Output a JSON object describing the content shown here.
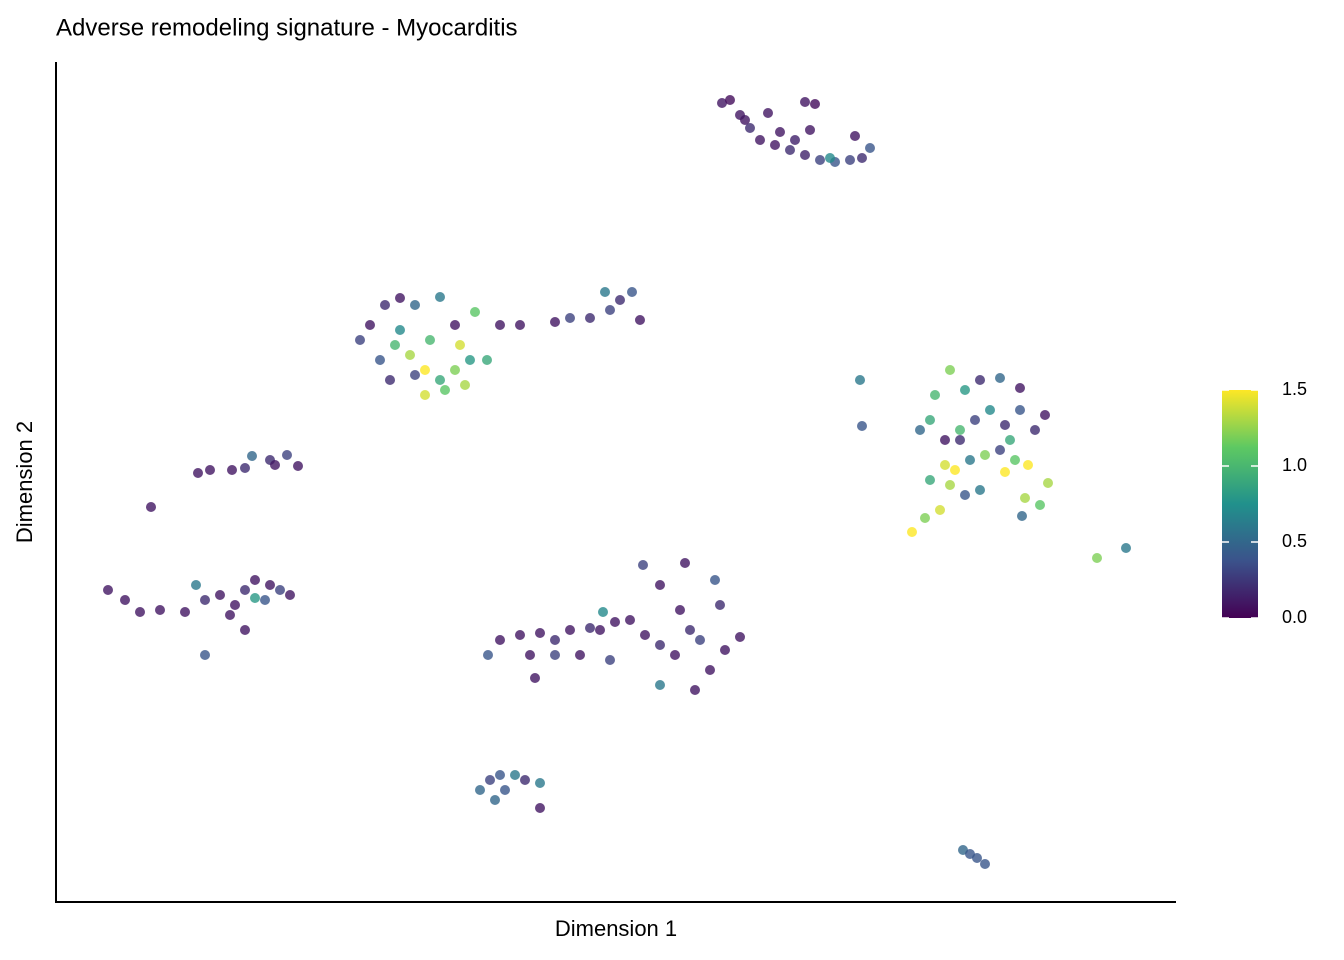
{
  "chart_data": {
    "type": "scatter",
    "title": "Adverse remodeling signature - Myocarditis",
    "x_label": "Dimension 1",
    "y_label": "Dimension 2",
    "xlim": [
      0,
      1120
    ],
    "ylim": [
      0,
      840
    ],
    "x": [
      666,
      674,
      684,
      712,
      749,
      759,
      694,
      704,
      719,
      734,
      749,
      764,
      779,
      794,
      799,
      814,
      806,
      724,
      739,
      774,
      754,
      689,
      304,
      314,
      329,
      344,
      359,
      384,
      399,
      419,
      324,
      339,
      354,
      369,
      384,
      399,
      409,
      369,
      389,
      414,
      431,
      344,
      374,
      359,
      334,
      404,
      444,
      464,
      499,
      514,
      534,
      549,
      564,
      576,
      584,
      554,
      804,
      806,
      864,
      879,
      894,
      909,
      924,
      944,
      964,
      989,
      874,
      889,
      904,
      919,
      934,
      949,
      964,
      979,
      889,
      899,
      914,
      929,
      944,
      959,
      972,
      874,
      894,
      909,
      924,
      949,
      969,
      984,
      992,
      856,
      869,
      884,
      966,
      1041,
      1070,
      904,
      954,
      95,
      142,
      154,
      176,
      189,
      196,
      214,
      231,
      242,
      219,
      52,
      69,
      84,
      104,
      129,
      140,
      149,
      164,
      179,
      189,
      199,
      209,
      224,
      234,
      199,
      189,
      149,
      174,
      214,
      432,
      444,
      464,
      484,
      499,
      514,
      534,
      547,
      544,
      524,
      554,
      559,
      574,
      587,
      589,
      604,
      604,
      604,
      624,
      629,
      639,
      644,
      659,
      664,
      669,
      684,
      654,
      474,
      479,
      634,
      619,
      499,
      424,
      434,
      444,
      459,
      469,
      484,
      484,
      439,
      449,
      907,
      914,
      921,
      929
    ],
    "values": [
      799,
      802,
      787,
      789,
      800,
      798,
      774,
      762,
      757,
      752,
      747,
      742,
      740,
      742,
      766,
      754,
      744,
      770,
      762,
      744,
      772,
      782,
      562,
      577,
      597,
      604,
      597,
      605,
      577,
      590,
      542,
      557,
      547,
      532,
      522,
      532,
      517,
      507,
      512,
      542,
      542,
      572,
      562,
      527,
      522,
      557,
      577,
      577,
      580,
      584,
      584,
      610,
      602,
      610,
      582,
      592,
      522,
      476,
      472,
      507,
      532,
      512,
      522,
      524,
      514,
      487,
      482,
      462,
      472,
      482,
      492,
      477,
      492,
      472,
      437,
      432,
      442,
      447,
      452,
      442,
      437,
      422,
      417,
      407,
      412,
      430,
      404,
      397,
      419,
      370,
      384,
      392,
      386,
      344,
      354,
      462,
      462,
      395,
      429,
      432,
      432,
      434,
      446,
      442,
      447,
      436,
      437,
      312,
      302,
      290,
      292,
      290,
      317,
      302,
      307,
      297,
      312,
      322,
      302,
      312,
      307,
      304,
      272,
      247,
      287,
      317,
      247,
      262,
      267,
      269,
      262,
      272,
      274,
      290,
      272,
      247,
      242,
      280,
      282,
      337,
      267,
      317,
      257,
      217,
      292,
      339,
      212,
      262,
      322,
      297,
      252,
      265,
      232,
      247,
      224,
      272,
      247,
      247,
      112,
      122,
      127,
      127,
      122,
      119,
      94,
      102,
      112,
      52,
      48,
      44,
      38
    ],
    "scores": [
      0.1,
      0.05,
      0.1,
      0.1,
      0.1,
      0.05,
      0.2,
      0.1,
      0.1,
      0.2,
      0.15,
      0.3,
      0.4,
      0.3,
      0.1,
      0.4,
      0.2,
      0.1,
      0.15,
      0.7,
      0.1,
      0.1,
      0.3,
      0.1,
      0.2,
      0.1,
      0.5,
      0.6,
      0.1,
      1.1,
      0.4,
      1.0,
      1.3,
      1.5,
      0.9,
      1.2,
      1.3,
      1.4,
      1.1,
      0.8,
      0.9,
      0.7,
      1.0,
      0.3,
      0.2,
      1.4,
      0.1,
      0.1,
      0.1,
      0.3,
      0.2,
      0.6,
      0.2,
      0.4,
      0.1,
      0.3,
      0.6,
      0.4,
      0.5,
      1.0,
      1.2,
      0.8,
      0.2,
      0.5,
      0.1,
      0.1,
      0.9,
      0.1,
      1.0,
      0.3,
      0.7,
      0.2,
      0.4,
      0.2,
      1.4,
      1.5,
      0.6,
      1.2,
      0.3,
      1.1,
      1.5,
      0.9,
      1.3,
      0.4,
      0.6,
      1.5,
      1.3,
      1.1,
      1.3,
      1.5,
      1.2,
      1.4,
      0.5,
      1.2,
      0.6,
      0.2,
      0.9,
      0.1,
      0.1,
      0.1,
      0.1,
      0.2,
      0.5,
      0.2,
      0.3,
      0.1,
      0.1,
      0.1,
      0.1,
      0.1,
      0.1,
      0.1,
      0.6,
      0.2,
      0.1,
      0.1,
      0.2,
      0.1,
      0.4,
      0.3,
      0.1,
      0.8,
      0.1,
      0.4,
      0.1,
      0.1,
      0.4,
      0.1,
      0.1,
      0.1,
      0.2,
      0.1,
      0.2,
      0.7,
      0.1,
      0.1,
      0.3,
      0.1,
      0.1,
      0.3,
      0.1,
      0.1,
      0.2,
      0.6,
      0.1,
      0.1,
      0.1,
      0.3,
      0.4,
      0.2,
      0.1,
      0.1,
      0.1,
      0.1,
      0.1,
      0.2,
      0.1,
      0.3,
      0.5,
      0.3,
      0.4,
      0.6,
      0.2,
      0.6,
      0.1,
      0.5,
      0.4,
      0.5,
      0.4,
      0.4,
      0.4
    ],
    "colormap": [
      "#440154",
      "#3b528b",
      "#21918c",
      "#5ec962",
      "#fde725"
    ],
    "clim": [
      0,
      1.5
    ],
    "cticks": [
      {
        "value": 0,
        "label": "0.0"
      },
      {
        "value": 0.5,
        "label": "0.5"
      },
      {
        "value": 1,
        "label": "1.0"
      },
      {
        "value": 1.5,
        "label": "1.5"
      }
    ],
    "legend": "right"
  }
}
